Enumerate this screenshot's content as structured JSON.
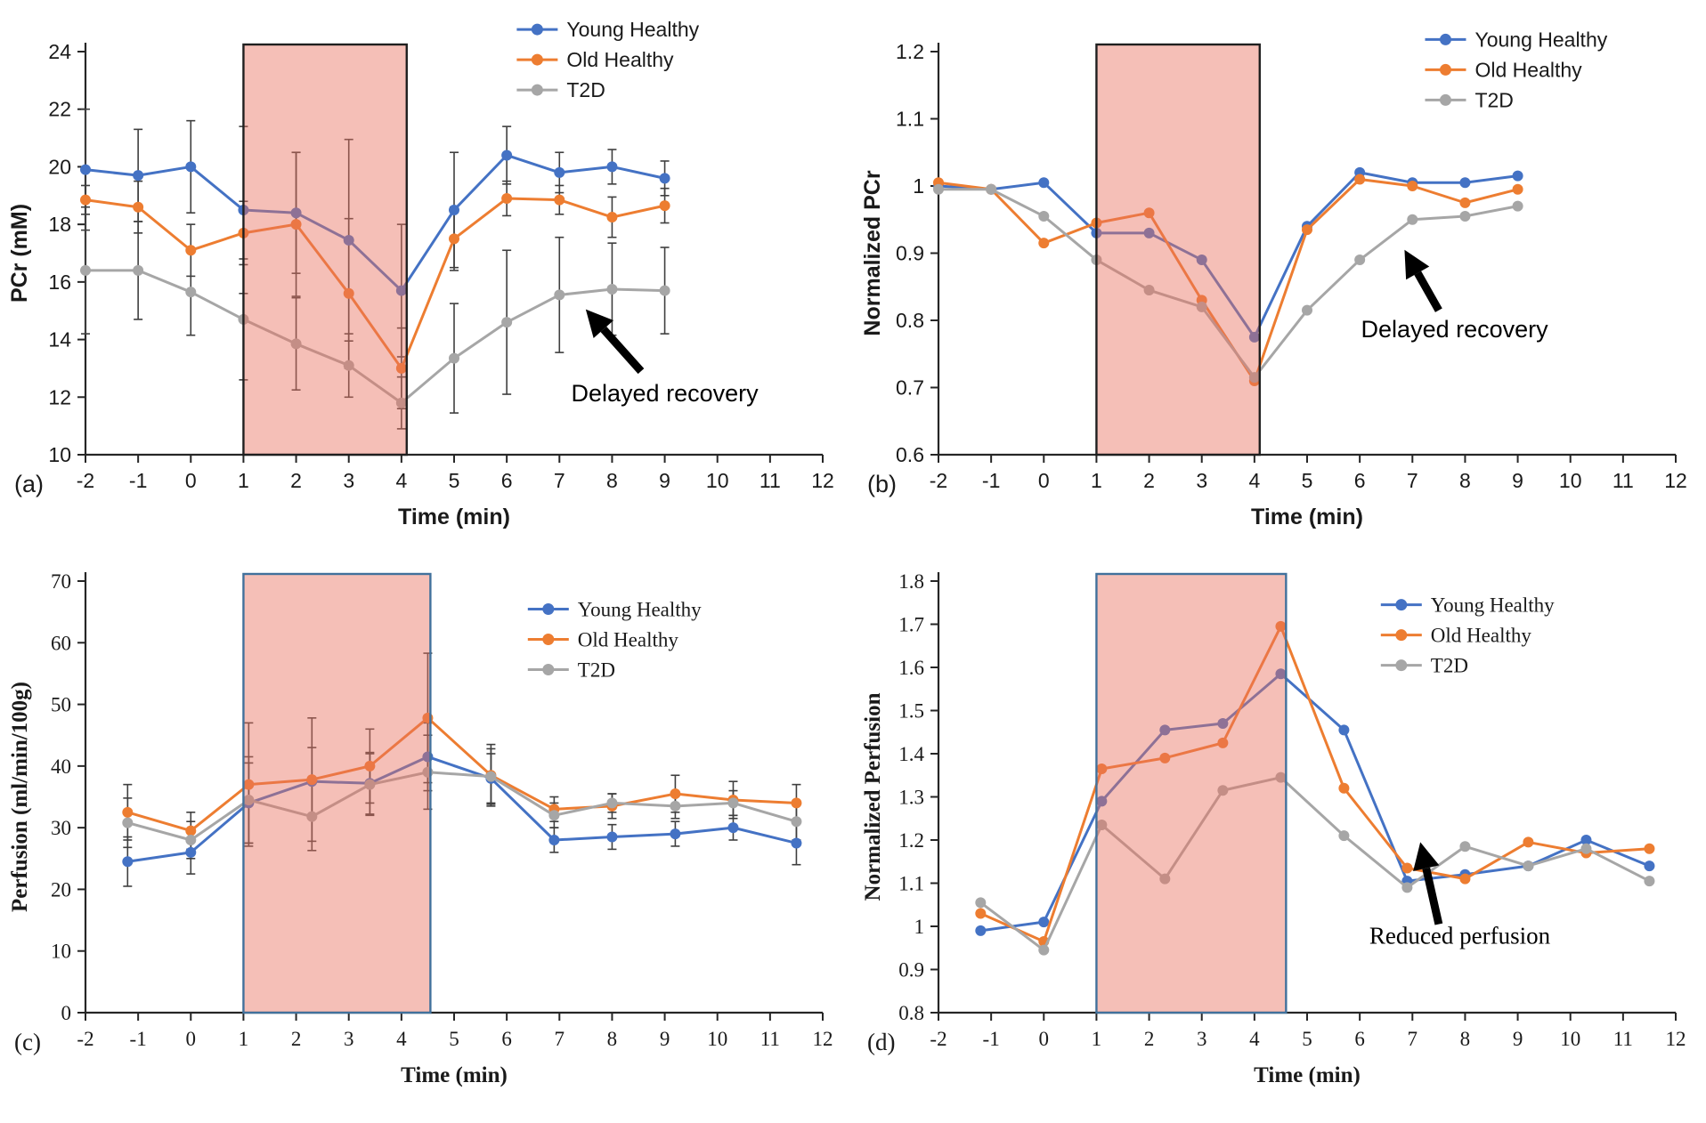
{
  "chart_data": [
    {
      "id": "a",
      "type": "line",
      "panel_label": "(a)",
      "font": "sans",
      "xlabel": "Time (min)",
      "ylabel": "PCr (mM)",
      "xlim": [
        -2,
        12
      ],
      "xtick_step": 1,
      "ylim": [
        10,
        24
      ],
      "ytick_step": 2,
      "shade": {
        "x0": 1,
        "x1": 4.1,
        "border_color": "#1f1f1f",
        "fill": "#E9705F",
        "fill_opacity": 0.45
      },
      "legend": {
        "fx": 0.585,
        "fy": -0.055
      },
      "x": [
        -2,
        -1,
        0,
        1,
        2,
        3,
        4,
        5,
        6,
        7,
        8,
        9
      ],
      "series": [
        {
          "name": "Young Healthy",
          "color": "#4472C4",
          "values": [
            19.9,
            19.7,
            20.0,
            18.5,
            18.4,
            17.45,
            15.7,
            18.5,
            20.4,
            19.8,
            20.0,
            19.6
          ],
          "err": [
            2.1,
            1.6,
            1.6,
            2.9,
            2.1,
            3.5,
            2.3,
            2.0,
            1.0,
            0.7,
            0.6,
            0.6
          ]
        },
        {
          "name": "Old Healthy",
          "color": "#ED7D31",
          "values": [
            18.85,
            18.6,
            17.1,
            17.7,
            18.0,
            15.6,
            13.0,
            17.5,
            18.9,
            18.85,
            18.25,
            18.65
          ],
          "err": [
            0.5,
            0.9,
            0.9,
            1.1,
            2.5,
            2.6,
            1.4,
            1.1,
            0.6,
            0.5,
            0.7,
            0.6
          ]
        },
        {
          "name": "T2D",
          "color": "#A6A6A6",
          "values": [
            16.4,
            16.4,
            15.65,
            14.7,
            13.85,
            13.1,
            11.8,
            13.35,
            14.6,
            15.55,
            15.75,
            15.7
          ],
          "err": [
            2.2,
            1.7,
            1.5,
            2.1,
            1.6,
            1.1,
            0.9,
            1.9,
            2.5,
            2.0,
            1.6,
            1.5
          ]
        }
      ],
      "annotation": {
        "text": "Delayed recovery",
        "tx": 9.0,
        "ty": 11.85,
        "arrow_tail": [
          8.55,
          12.9
        ],
        "arrow_tip": [
          7.5,
          15.05
        ]
      }
    },
    {
      "id": "b",
      "type": "line",
      "panel_label": "(b)",
      "font": "sans",
      "xlabel": "Time (min)",
      "ylabel": "Normalized PCr",
      "xlim": [
        -2,
        12
      ],
      "xtick_step": 1,
      "ylim": [
        0.6,
        1.2
      ],
      "ytick_step": 0.1,
      "shade": {
        "x0": 1,
        "x1": 4.1,
        "border_color": "#1f1f1f",
        "fill": "#E9705F",
        "fill_opacity": 0.45
      },
      "legend": {
        "fx": 0.66,
        "fy": -0.03
      },
      "x": [
        -2,
        -1,
        0,
        1,
        2,
        3,
        4,
        5,
        6,
        7,
        8,
        9
      ],
      "series": [
        {
          "name": "Young Healthy",
          "color": "#4472C4",
          "values": [
            1.0,
            0.995,
            1.005,
            0.93,
            0.93,
            0.89,
            0.775,
            0.94,
            1.02,
            1.005,
            1.005,
            1.015
          ]
        },
        {
          "name": "Old Healthy",
          "color": "#ED7D31",
          "values": [
            1.005,
            0.995,
            0.915,
            0.945,
            0.96,
            0.83,
            0.71,
            0.935,
            1.01,
            1.0,
            0.975,
            0.995
          ]
        },
        {
          "name": "T2D",
          "color": "#A6A6A6",
          "values": [
            0.995,
            0.995,
            0.955,
            0.89,
            0.845,
            0.82,
            0.715,
            0.815,
            0.89,
            0.95,
            0.955,
            0.97
          ]
        }
      ],
      "annotation": {
        "text": "Delayed recovery",
        "tx": 7.8,
        "ty": 0.775,
        "arrow_tail": [
          7.5,
          0.815
        ],
        "arrow_tip": [
          6.85,
          0.905
        ]
      }
    },
    {
      "id": "c",
      "type": "line",
      "panel_label": "(c)",
      "font": "serif",
      "xlabel": "Time (min)",
      "ylabel": "Perfusion (ml/min/100g)",
      "xlim": [
        -2,
        12
      ],
      "xtick_step": 1,
      "ylim": [
        0,
        70
      ],
      "ytick_step": 10,
      "shade": {
        "x0": 1,
        "x1": 4.55,
        "border_color": "#41719C",
        "fill": "#E9705F",
        "fill_opacity": 0.45
      },
      "legend": {
        "fx": 0.6,
        "fy": 0.065
      },
      "x": [
        -1.2,
        0,
        1.1,
        2.3,
        3.4,
        4.5,
        5.7,
        6.9,
        8,
        9.2,
        10.3,
        11.5
      ],
      "series": [
        {
          "name": "Young Healthy",
          "color": "#4472C4",
          "values": [
            24.5,
            26,
            34,
            37.5,
            37.2,
            41.5,
            38,
            28,
            28.5,
            29,
            30,
            27.5
          ],
          "err": [
            4,
            3.5,
            6.5,
            5.5,
            5,
            5.5,
            4,
            2,
            2,
            2,
            2,
            3.5
          ]
        },
        {
          "name": "Old Healthy",
          "color": "#ED7D31",
          "values": [
            32.5,
            29.5,
            37,
            37.8,
            40,
            47.8,
            38.5,
            33,
            33.5,
            35.5,
            34.5,
            34
          ],
          "err": [
            4.5,
            3,
            10,
            10,
            6,
            10.5,
            5,
            2,
            2,
            3,
            3,
            3
          ]
        },
        {
          "name": "T2D",
          "color": "#A6A6A6",
          "values": [
            30.8,
            28,
            34.5,
            31.8,
            37,
            39,
            38.3,
            32,
            34,
            33.5,
            34,
            31
          ],
          "err": [
            4,
            3,
            7,
            5.5,
            5,
            6,
            4.5,
            2,
            1.5,
            2,
            2,
            3
          ]
        }
      ]
    },
    {
      "id": "d",
      "type": "line",
      "panel_label": "(d)",
      "font": "serif",
      "xlabel": "Time (min)",
      "ylabel": "Normalized Perfusion",
      "xlim": [
        -2,
        12
      ],
      "xtick_step": 1,
      "ylim": [
        0.8,
        1.8
      ],
      "ytick_step": 0.1,
      "shade": {
        "x0": 1,
        "x1": 4.6,
        "border_color": "#41719C",
        "fill": "#E9705F",
        "fill_opacity": 0.45
      },
      "legend": {
        "fx": 0.6,
        "fy": 0.055
      },
      "x": [
        -1.2,
        0,
        1.1,
        2.3,
        3.4,
        4.5,
        5.7,
        6.9,
        8,
        9.2,
        10.3,
        11.5
      ],
      "series": [
        {
          "name": "Young Healthy",
          "color": "#4472C4",
          "values": [
            0.99,
            1.01,
            1.29,
            1.455,
            1.47,
            1.585,
            1.455,
            1.105,
            1.12,
            1.14,
            1.2,
            1.14
          ]
        },
        {
          "name": "Old Healthy",
          "color": "#ED7D31",
          "values": [
            1.03,
            0.965,
            1.365,
            1.39,
            1.425,
            1.695,
            1.32,
            1.135,
            1.11,
            1.195,
            1.17,
            1.18
          ]
        },
        {
          "name": "T2D",
          "color": "#A6A6A6",
          "values": [
            1.055,
            0.945,
            1.235,
            1.11,
            1.315,
            1.345,
            1.21,
            1.09,
            1.185,
            1.14,
            1.18,
            1.105
          ]
        }
      ],
      "annotation": {
        "text": "Reduced perfusion",
        "tx": 7.9,
        "ty": 0.96,
        "arrow_tail": [
          7.5,
          1.005
        ],
        "arrow_tip": [
          7.15,
          1.195
        ]
      }
    }
  ],
  "style": {
    "error_bar_color": "#3F3F3F",
    "axis_color": "#262626",
    "annotation_color": "#000000"
  }
}
